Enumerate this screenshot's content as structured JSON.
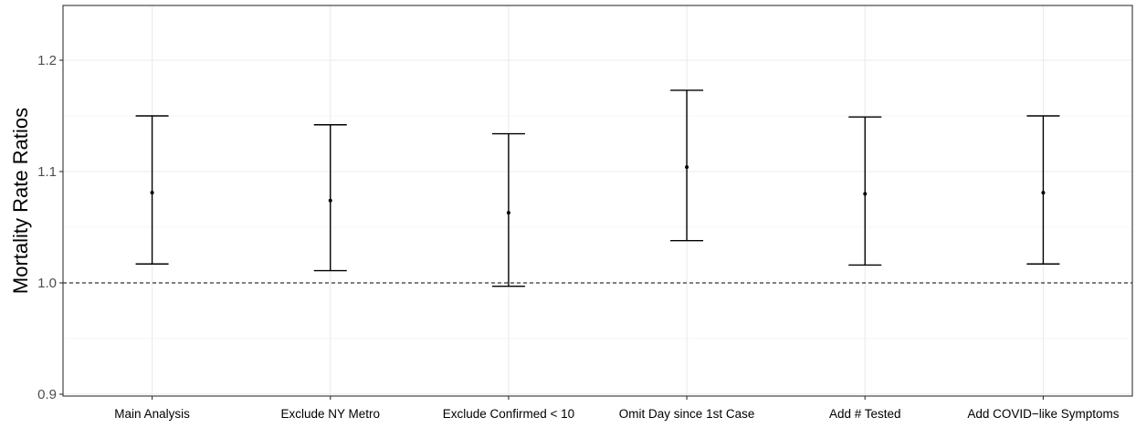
{
  "chart_data": {
    "type": "errorbar",
    "title": "",
    "xlabel": "",
    "ylabel": "Mortality Rate Ratios",
    "ylim": [
      0.9,
      1.25
    ],
    "yticks": [
      "0.9",
      "1.0",
      "1.1",
      "1.2"
    ],
    "grid": true,
    "reference_line": 1.0,
    "categories": [
      "Main Analysis",
      "Exclude NY Metro",
      "Exclude Confirmed < 10",
      "Omit Day since 1st Case",
      "Add # Tested",
      "Add COVID−like Symptoms"
    ],
    "estimates": [
      1.081,
      1.074,
      1.063,
      1.104,
      1.08,
      1.081
    ],
    "lower": [
      1.017,
      1.011,
      0.997,
      1.038,
      1.016,
      1.017
    ],
    "upper": [
      1.15,
      1.142,
      1.134,
      1.173,
      1.149,
      1.15
    ]
  }
}
